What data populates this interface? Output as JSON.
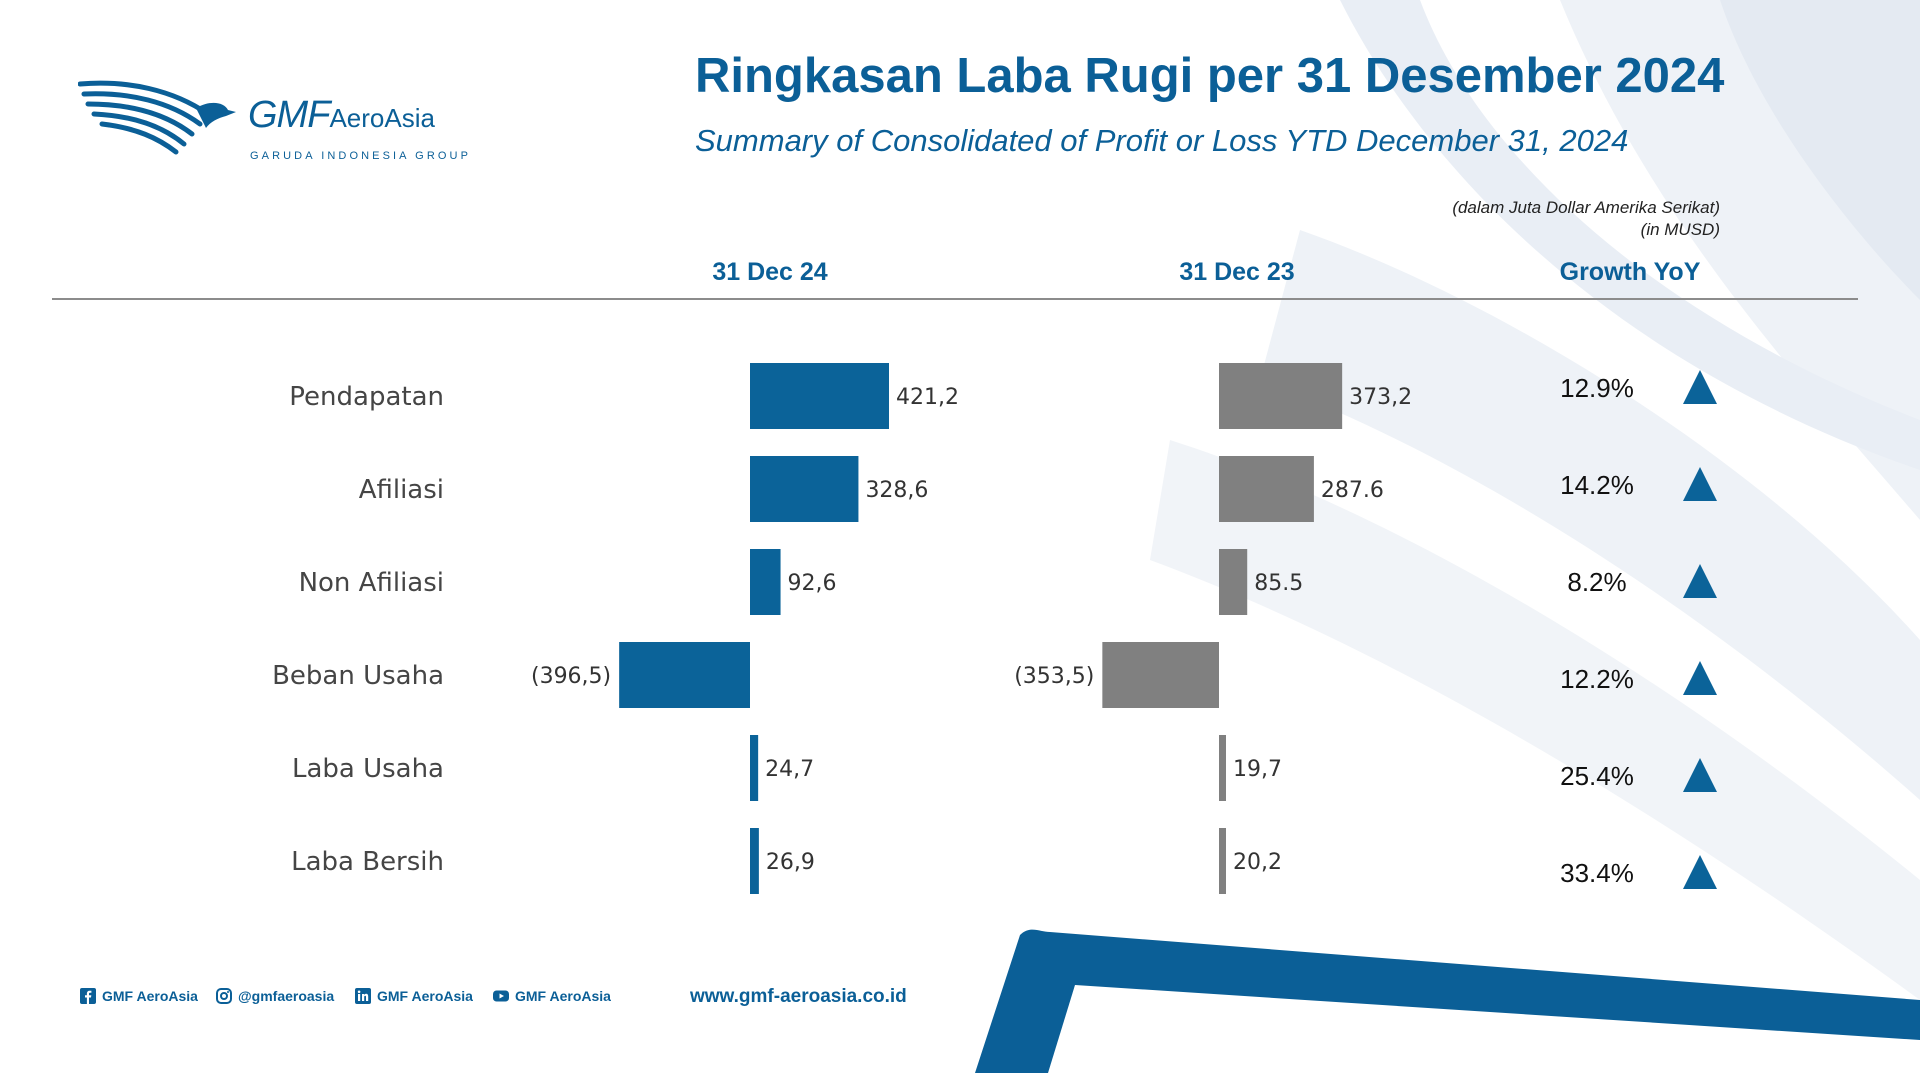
{
  "logo": {
    "brand": "GMF",
    "brand_suffix": "AeroAsia",
    "tagline": "GARUDA INDONESIA GROUP"
  },
  "header": {
    "title": "Ringkasan Laba Rugi per 31 Desember 2024",
    "subtitle": "Summary of Consolidated of Profit or Loss YTD December 31, 2024",
    "unit_line1": "(dalam Juta Dollar Amerika Serikat)",
    "unit_line2": "(in MUSD)"
  },
  "columns": {
    "current": "31 Dec 24",
    "previous": "31 Dec 23",
    "growth": "Growth YoY"
  },
  "chart_data": {
    "type": "bar",
    "categories": [
      "Pendapatan",
      "Afiliasi",
      "Non Afiliasi",
      "Beban Usaha",
      "Laba Usaha",
      "Laba Bersih"
    ],
    "series": [
      {
        "name": "31 Dec 24",
        "color": "#0b6399",
        "values": [
          421.2,
          328.6,
          92.6,
          -396.5,
          24.7,
          26.9
        ],
        "labels": [
          "421,2",
          "328,6",
          "92,6",
          "(396,5)",
          "24,7",
          "26,9"
        ]
      },
      {
        "name": "31 Dec 23",
        "color": "#808080",
        "values": [
          373.2,
          287.6,
          85.5,
          -353.5,
          19.7,
          20.2
        ],
        "labels": [
          "373,2",
          "287.6",
          "85.5",
          "(353,5)",
          "19,7",
          "20,2"
        ]
      }
    ],
    "growth_yoy": [
      "12.9%",
      "14.2%",
      "8.2%",
      "12.2%",
      "25.4%",
      "33.4%"
    ],
    "growth_direction": [
      "up",
      "up",
      "up",
      "up",
      "up",
      "up"
    ],
    "growth_icon": "triangle-up-icon",
    "accent_color": "#0b6399"
  },
  "footer": {
    "facebook": "GMF AeroAsia",
    "instagram": "@gmfaeroasia",
    "linkedin": "GMF AeroAsia",
    "youtube": "GMF AeroAsia",
    "website": "www.gmf-aeroasia.co.id"
  }
}
